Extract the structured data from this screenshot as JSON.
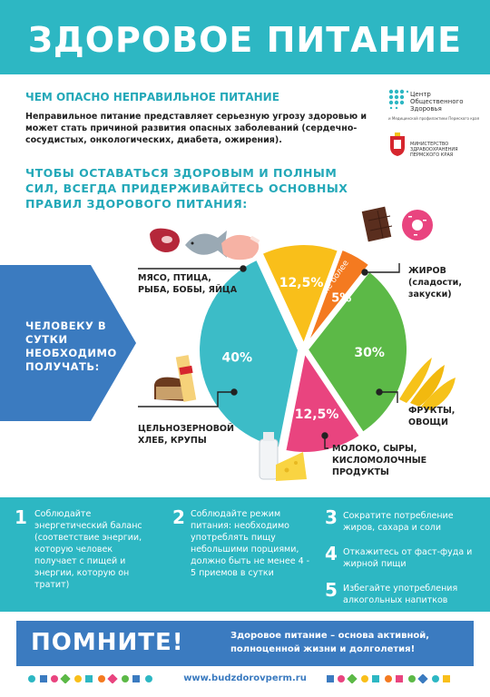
{
  "header": {
    "title": "ЗДОРОВОЕ ПИТАНИЕ"
  },
  "intro": {
    "heading": "ЧЕМ ОПАСНО НЕПРАВИЛЬНОЕ ПИТАНИЕ",
    "text": "Неправильное питание представляет серьезную угрозу здоровью и может стать причиной развития опасных заболеваний (сердечно-сосудистых, онкологических, диабета, ожирения)."
  },
  "rules_heading": "ЧТОБЫ ОСТАВАТЬСЯ ЗДОРОВЫМ И ПОЛНЫМ СИЛ, ВСЕГДА ПРИДЕРЖИВАЙТЕСЬ ОСНОВНЫХ ПРАВИЛ ЗДОРОВОГО ПИТАНИЯ:",
  "logos": {
    "center": "Центр Общественного Здоровья",
    "center_sub": "и Медицинской профилактики Пермского края",
    "ministry": "МИНИСТЕРСТВО ЗДРАВООХРАНЕНИЯ ПЕРМСКОГО КРАЯ"
  },
  "daily_label": "ЧЕЛОВЕКУ В СУТКИ НЕОБХОДИМО ПОЛУЧАТЬ:",
  "chart_data": {
    "type": "pie",
    "slices": [
      {
        "label": "МЯСО, ПТИЦА, РЫБА, БОБЫ, ЯЙЦА",
        "value": 12.5,
        "display": "12,5%",
        "color": "#f9bf1a"
      },
      {
        "label": "ЖИРОВ (сладости, закуски)",
        "value": 5,
        "display": "5%",
        "prefix": "не более",
        "color": "#f47a20"
      },
      {
        "label": "ФРУКТЫ, ОВОЩИ",
        "value": 30,
        "display": "30%",
        "color": "#5cb947"
      },
      {
        "label": "МОЛОКО, СЫРЫ, КИСЛОМОЛОЧНЫЕ ПРОДУКТЫ",
        "value": 12.5,
        "display": "12,5%",
        "color": "#e9447f"
      },
      {
        "label": "ЦЕЛЬНОЗЕРНОВОЙ ХЛЕБ, КРУПЫ",
        "value": 40,
        "display": "40%",
        "color": "#3cbcc7"
      }
    ]
  },
  "labels": {
    "meat": "МЯСО, ПТИЦА, РЫБА, БОБЫ, ЯЙЦА",
    "fat": "ЖИРОВ (сладости, закуски)",
    "fruit": "ФРУКТЫ, ОВОЩИ",
    "milk": "МОЛОКО, СЫРЫ, КИСЛОМОЛОЧНЫЕ ПРОДУКТЫ",
    "bread": "ЦЕЛЬНОЗЕРНОВОЙ ХЛЕБ, КРУПЫ"
  },
  "rules": [
    {
      "num": "1",
      "text": "Соблюдайте энергетический баланс (соответствие энергии, которую человек получает с пищей и энергии, которую он тратит)"
    },
    {
      "num": "2",
      "text": "Соблюдайте режим питания: необходимо употреблять пищу небольшими порциями, должно быть не менее 4 - 5 приемов в сутки"
    },
    {
      "num": "3",
      "text": "Сократите потребление жиров, сахара и соли"
    },
    {
      "num": "4",
      "text": "Откажитесь от фаст-фуда и жирной пищи"
    },
    {
      "num": "5",
      "text": "Избегайте употребления алкогольных напитков"
    }
  ],
  "remember": {
    "title": "ПОМНИТЕ!",
    "text": "Здоровое питание – основа активной, полноценной жизни и долголетия!"
  },
  "footer": {
    "url": "www.budzdorovperm.ru"
  },
  "colors": {
    "teal": "#2db7c3",
    "blue": "#3b7bc0",
    "yellow": "#f9bf1a",
    "orange": "#f47a20",
    "green": "#5cb947",
    "pink": "#e9447f"
  }
}
